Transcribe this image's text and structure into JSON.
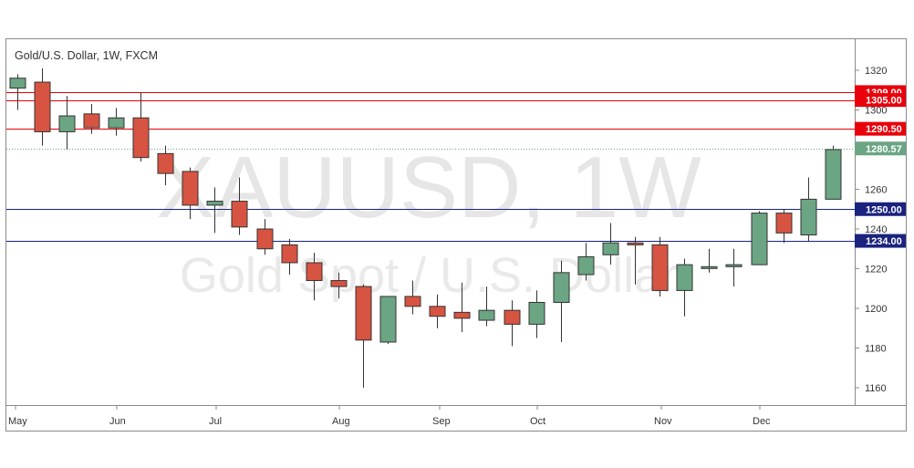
{
  "header": {
    "title": "Gold/U.S. Dollar, 1W, FXCM"
  },
  "watermark": {
    "symbol": "XAUUSD, 1W",
    "name": "Gold Spot / U.S. Dollar"
  },
  "colors": {
    "up": "#6ba583",
    "down": "#d75442",
    "resistance": "#e8000b",
    "support": "#1a237e",
    "last_price": "#6ba583"
  },
  "chart_data": {
    "type": "candlestick",
    "title": "Gold/U.S. Dollar, 1W, FXCM",
    "ylim": [
      1150,
      1328
    ],
    "y_ticks": [
      1160,
      1180,
      1200,
      1220,
      1240,
      1260,
      1280,
      1300,
      1320
    ],
    "x_ticks": [
      "May",
      "Jun",
      "Jul",
      "Aug",
      "Sep",
      "Oct",
      "Nov",
      "Dec"
    ],
    "grid": false,
    "candles": [
      {
        "i": 0,
        "open": 1311,
        "high": 1318,
        "low": 1300,
        "close": 1316
      },
      {
        "i": 1,
        "open": 1314,
        "high": 1321,
        "low": 1282,
        "close": 1289
      },
      {
        "i": 2,
        "open": 1289,
        "high": 1307,
        "low": 1280,
        "close": 1297
      },
      {
        "i": 3,
        "open": 1298,
        "high": 1303,
        "low": 1288,
        "close": 1291
      },
      {
        "i": 4,
        "open": 1291,
        "high": 1301,
        "low": 1287,
        "close": 1296
      },
      {
        "i": 5,
        "open": 1296,
        "high": 1309,
        "low": 1274,
        "close": 1276
      },
      {
        "i": 6,
        "open": 1278,
        "high": 1282,
        "low": 1262,
        "close": 1268
      },
      {
        "i": 7,
        "open": 1269,
        "high": 1271,
        "low": 1245,
        "close": 1252
      },
      {
        "i": 8,
        "open": 1252,
        "high": 1261,
        "low": 1238,
        "close": 1254
      },
      {
        "i": 9,
        "open": 1254,
        "high": 1266,
        "low": 1237,
        "close": 1241
      },
      {
        "i": 10,
        "open": 1240,
        "high": 1245,
        "low": 1227,
        "close": 1230
      },
      {
        "i": 11,
        "open": 1232,
        "high": 1235,
        "low": 1217,
        "close": 1223
      },
      {
        "i": 12,
        "open": 1223,
        "high": 1228,
        "low": 1204,
        "close": 1214
      },
      {
        "i": 13,
        "open": 1214,
        "high": 1218,
        "low": 1205,
        "close": 1211
      },
      {
        "i": 14,
        "open": 1211,
        "high": 1212,
        "low": 1160,
        "close": 1184
      },
      {
        "i": 15,
        "open": 1183,
        "high": 1206,
        "low": 1182,
        "close": 1206
      },
      {
        "i": 16,
        "open": 1206,
        "high": 1214,
        "low": 1197,
        "close": 1201
      },
      {
        "i": 17,
        "open": 1201,
        "high": 1207,
        "low": 1190,
        "close": 1196
      },
      {
        "i": 18,
        "open": 1198,
        "high": 1213,
        "low": 1188,
        "close": 1195
      },
      {
        "i": 19,
        "open": 1194,
        "high": 1211,
        "low": 1191,
        "close": 1199
      },
      {
        "i": 20,
        "open": 1199,
        "high": 1204,
        "low": 1181,
        "close": 1192
      },
      {
        "i": 21,
        "open": 1192,
        "high": 1209,
        "low": 1185,
        "close": 1203
      },
      {
        "i": 22,
        "open": 1203,
        "high": 1224,
        "low": 1183,
        "close": 1218
      },
      {
        "i": 23,
        "open": 1217,
        "high": 1233,
        "low": 1214,
        "close": 1226
      },
      {
        "i": 24,
        "open": 1227,
        "high": 1243,
        "low": 1222,
        "close": 1233
      },
      {
        "i": 25,
        "open": 1233,
        "high": 1236,
        "low": 1212,
        "close": 1232
      },
      {
        "i": 26,
        "open": 1232,
        "high": 1236,
        "low": 1206,
        "close": 1209
      },
      {
        "i": 27,
        "open": 1209,
        "high": 1225,
        "low": 1196,
        "close": 1222
      },
      {
        "i": 28,
        "open": 1221,
        "high": 1230,
        "low": 1218,
        "close": 1221
      },
      {
        "i": 29,
        "open": 1221,
        "high": 1230,
        "low": 1211,
        "close": 1222
      },
      {
        "i": 30,
        "open": 1222,
        "high": 1249,
        "low": 1222,
        "close": 1248
      },
      {
        "i": 31,
        "open": 1248,
        "high": 1250,
        "low": 1233,
        "close": 1238
      },
      {
        "i": 32,
        "open": 1237,
        "high": 1266,
        "low": 1234,
        "close": 1255
      },
      {
        "i": 33,
        "open": 1255,
        "high": 1282,
        "low": 1255,
        "close": 1280
      }
    ],
    "levels": [
      {
        "value": 1309.0,
        "label": "1309.00",
        "kind": "resistance"
      },
      {
        "value": 1305.0,
        "label": "1305.00",
        "kind": "resistance"
      },
      {
        "value": 1290.5,
        "label": "1290.50",
        "kind": "resistance"
      },
      {
        "value": 1250.0,
        "label": "1250.00",
        "kind": "support"
      },
      {
        "value": 1234.0,
        "label": "1234.00",
        "kind": "support"
      }
    ],
    "last_price": {
      "value": 1280.57,
      "label": "1280.57"
    }
  }
}
